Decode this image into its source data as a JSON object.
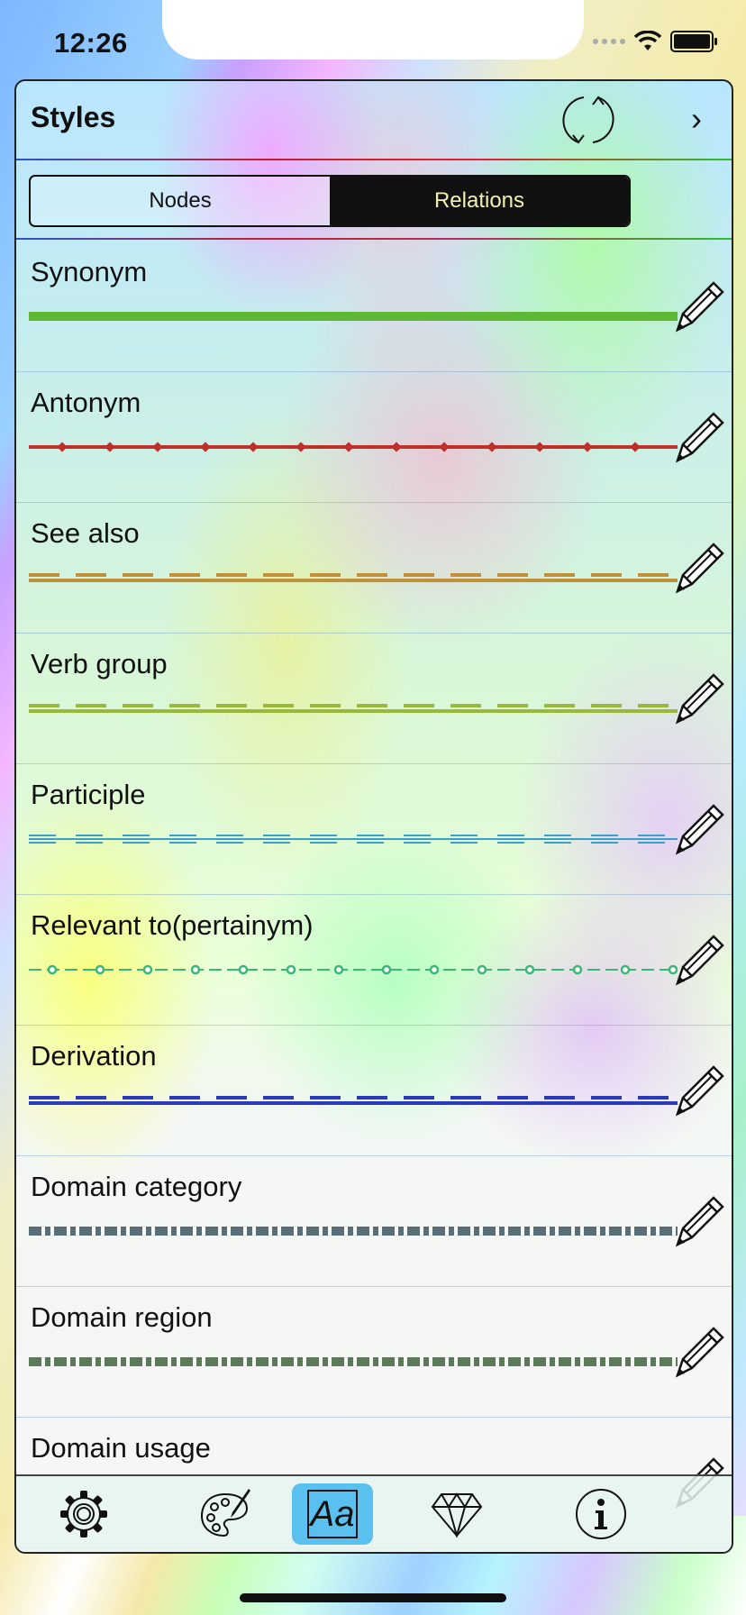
{
  "status": {
    "time": "12:26"
  },
  "header": {
    "title": "Styles"
  },
  "segments": {
    "nodes": "Nodes",
    "relations": "Relations",
    "selected": "Relations"
  },
  "relations": [
    {
      "label": "Synonym",
      "color": "#5fb833",
      "style": "solid"
    },
    {
      "label": "Antonym",
      "color": "#c0302a",
      "style": "dash-dot"
    },
    {
      "label": "See also",
      "color": "#c0903a",
      "style": "dashed-double"
    },
    {
      "label": "Verb group",
      "color": "#9ab83a",
      "style": "dashed-double"
    },
    {
      "label": "Participle",
      "color": "#3aa0c8",
      "style": "double-dash"
    },
    {
      "label": "Relevant to(pertainym)",
      "color": "#3ab878",
      "style": "dash-circle"
    },
    {
      "label": "Derivation",
      "color": "#2a3ab8",
      "style": "dashed-double"
    },
    {
      "label": "Domain category",
      "color": "#5a6e78",
      "style": "dash-dot-thick"
    },
    {
      "label": "Domain region",
      "color": "#5a7a5a",
      "style": "dash-dot-thick"
    },
    {
      "label": "Domain usage",
      "color": "#555555",
      "style": "dash-dot-thick"
    }
  ],
  "tabs": [
    {
      "name": "settings",
      "icon": "gear-icon"
    },
    {
      "name": "palette",
      "icon": "palette-icon"
    },
    {
      "name": "fonts",
      "icon": "font-icon",
      "text": "Aa",
      "selected": true
    },
    {
      "name": "premium",
      "icon": "diamond-icon"
    },
    {
      "name": "info",
      "icon": "info-icon"
    }
  ]
}
